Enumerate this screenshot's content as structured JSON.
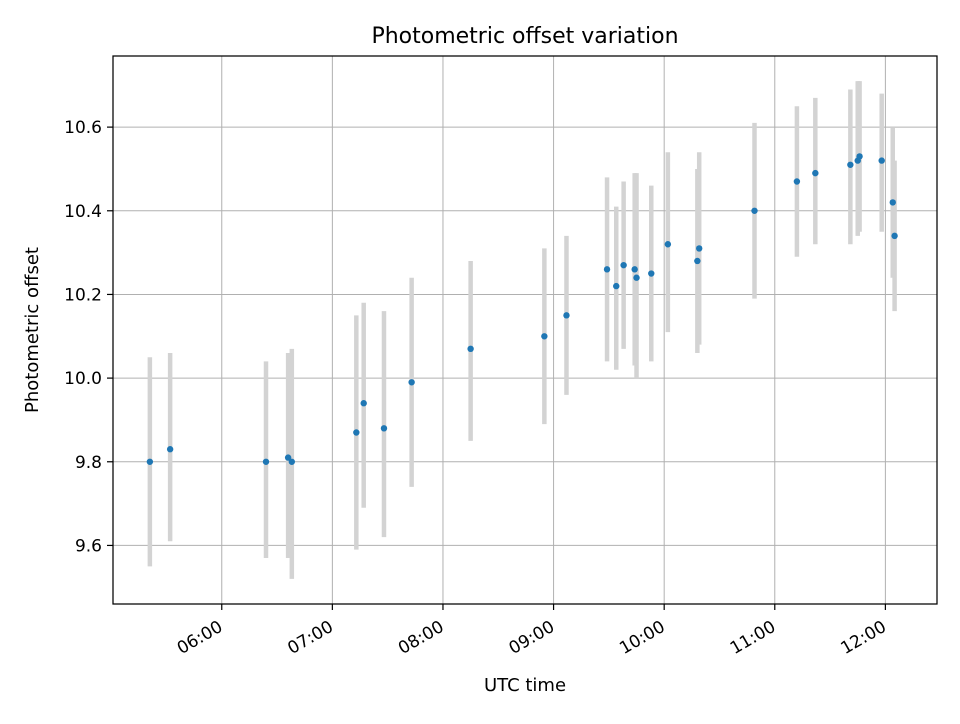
{
  "chart_data": {
    "type": "scatter",
    "title": "Photometric offset variation",
    "xlabel": "UTC time",
    "ylabel": "Photometric offset",
    "x_axis_kind": "time",
    "xlim": [
      "05:01",
      "12:28"
    ],
    "ylim": [
      9.46,
      10.77
    ],
    "xticks": [
      "06:00",
      "07:00",
      "08:00",
      "09:00",
      "10:00",
      "11:00",
      "12:00"
    ],
    "yticks": [
      9.6,
      9.8,
      10.0,
      10.2,
      10.4,
      10.6
    ],
    "grid": true,
    "marker_color": "#1f77b4",
    "errorbar_color": "#d3d3d3",
    "points": [
      {
        "time": "05:21",
        "value": 9.8,
        "lower": 9.55,
        "upper": 10.05
      },
      {
        "time": "05:32",
        "value": 9.83,
        "lower": 9.61,
        "upper": 10.06
      },
      {
        "time": "06:24",
        "value": 9.8,
        "lower": 9.57,
        "upper": 10.04
      },
      {
        "time": "06:36",
        "value": 9.81,
        "lower": 9.57,
        "upper": 10.06
      },
      {
        "time": "06:38",
        "value": 9.8,
        "lower": 9.52,
        "upper": 10.07
      },
      {
        "time": "07:13",
        "value": 9.87,
        "lower": 9.59,
        "upper": 10.15
      },
      {
        "time": "07:17",
        "value": 9.94,
        "lower": 9.69,
        "upper": 10.18
      },
      {
        "time": "07:28",
        "value": 9.88,
        "lower": 9.62,
        "upper": 10.16
      },
      {
        "time": "07:43",
        "value": 9.99,
        "lower": 9.74,
        "upper": 10.24
      },
      {
        "time": "08:15",
        "value": 10.07,
        "lower": 9.85,
        "upper": 10.28
      },
      {
        "time": "08:55",
        "value": 10.1,
        "lower": 9.89,
        "upper": 10.31
      },
      {
        "time": "09:07",
        "value": 10.15,
        "lower": 9.96,
        "upper": 10.34
      },
      {
        "time": "09:29",
        "value": 10.26,
        "lower": 10.04,
        "upper": 10.48
      },
      {
        "time": "09:34",
        "value": 10.22,
        "lower": 10.02,
        "upper": 10.41
      },
      {
        "time": "09:38",
        "value": 10.27,
        "lower": 10.07,
        "upper": 10.47
      },
      {
        "time": "09:44",
        "value": 10.26,
        "lower": 10.03,
        "upper": 10.49
      },
      {
        "time": "09:45",
        "value": 10.24,
        "lower": 10.0,
        "upper": 10.49
      },
      {
        "time": "09:53",
        "value": 10.25,
        "lower": 10.04,
        "upper": 10.46
      },
      {
        "time": "10:02",
        "value": 10.32,
        "lower": 10.11,
        "upper": 10.54
      },
      {
        "time": "10:18",
        "value": 10.28,
        "lower": 10.06,
        "upper": 10.5
      },
      {
        "time": "10:19",
        "value": 10.31,
        "lower": 10.08,
        "upper": 10.54
      },
      {
        "time": "10:49",
        "value": 10.4,
        "lower": 10.19,
        "upper": 10.61
      },
      {
        "time": "11:12",
        "value": 10.47,
        "lower": 10.29,
        "upper": 10.65
      },
      {
        "time": "11:22",
        "value": 10.49,
        "lower": 10.32,
        "upper": 10.67
      },
      {
        "time": "11:41",
        "value": 10.51,
        "lower": 10.32,
        "upper": 10.69
      },
      {
        "time": "11:45",
        "value": 10.52,
        "lower": 10.34,
        "upper": 10.71
      },
      {
        "time": "11:46",
        "value": 10.53,
        "lower": 10.35,
        "upper": 10.71
      },
      {
        "time": "11:58",
        "value": 10.52,
        "lower": 10.35,
        "upper": 10.68
      },
      {
        "time": "12:04",
        "value": 10.42,
        "lower": 10.24,
        "upper": 10.6
      },
      {
        "time": "12:05",
        "value": 10.34,
        "lower": 10.16,
        "upper": 10.52
      }
    ]
  }
}
